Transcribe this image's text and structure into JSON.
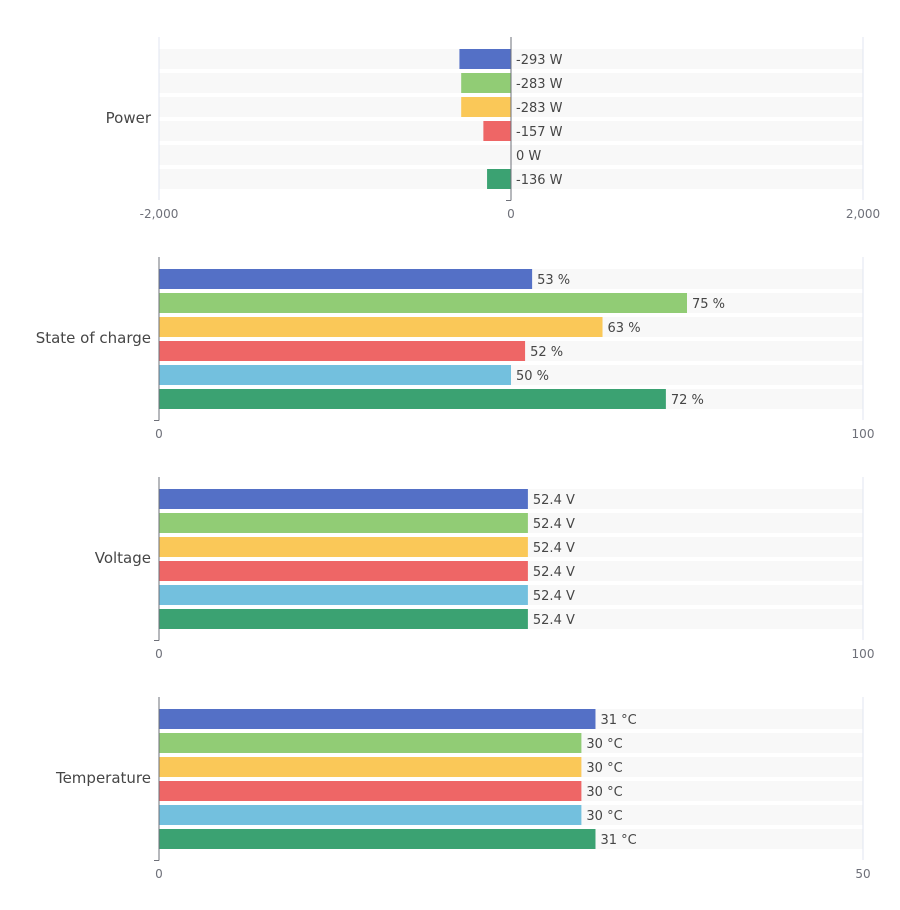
{
  "chart_data": [
    {
      "type": "bar",
      "orientation": "horizontal",
      "category": "Power",
      "unit": "W",
      "values": [
        -293,
        -283,
        -283,
        -157,
        0,
        -136
      ],
      "labels": [
        "-293 W",
        "-283 W",
        "-283 W",
        "-157 W",
        "0 W",
        "-136 W"
      ],
      "xlim": [
        -2000,
        2000
      ],
      "tick_labels": [
        "-2,000",
        "0",
        "2,000"
      ],
      "ticks": [
        -2000,
        0,
        2000
      ]
    },
    {
      "type": "bar",
      "orientation": "horizontal",
      "category": "State of charge",
      "unit": "%",
      "values": [
        53,
        75,
        63,
        52,
        50,
        72
      ],
      "labels": [
        "53 %",
        "75 %",
        "63 %",
        "52 %",
        "50 %",
        "72 %"
      ],
      "xlim": [
        0,
        100
      ],
      "tick_labels": [
        "0",
        "100"
      ],
      "ticks": [
        0,
        100
      ]
    },
    {
      "type": "bar",
      "orientation": "horizontal",
      "category": "Voltage",
      "unit": "V",
      "values": [
        52.4,
        52.4,
        52.4,
        52.4,
        52.4,
        52.4
      ],
      "labels": [
        "52.4 V",
        "52.4 V",
        "52.4 V",
        "52.4 V",
        "52.4 V",
        "52.4 V"
      ],
      "xlim": [
        0,
        100
      ],
      "tick_labels": [
        "0",
        "100"
      ],
      "ticks": [
        0,
        100
      ]
    },
    {
      "type": "bar",
      "orientation": "horizontal",
      "category": "Temperature",
      "unit": "°C",
      "values": [
        31,
        30,
        30,
        30,
        30,
        31
      ],
      "labels": [
        "31 °C",
        "30 °C",
        "30 °C",
        "30 °C",
        "30 °C",
        "31 °C"
      ],
      "xlim": [
        0,
        50
      ],
      "tick_labels": [
        "0",
        "50"
      ],
      "ticks": [
        0,
        50
      ]
    }
  ],
  "series_colors": [
    "#5470c6",
    "#91cc75",
    "#fac858",
    "#ee6666",
    "#73c0de",
    "#3ba272"
  ],
  "background_stripe_color": "#f8f8f8",
  "grid": true
}
